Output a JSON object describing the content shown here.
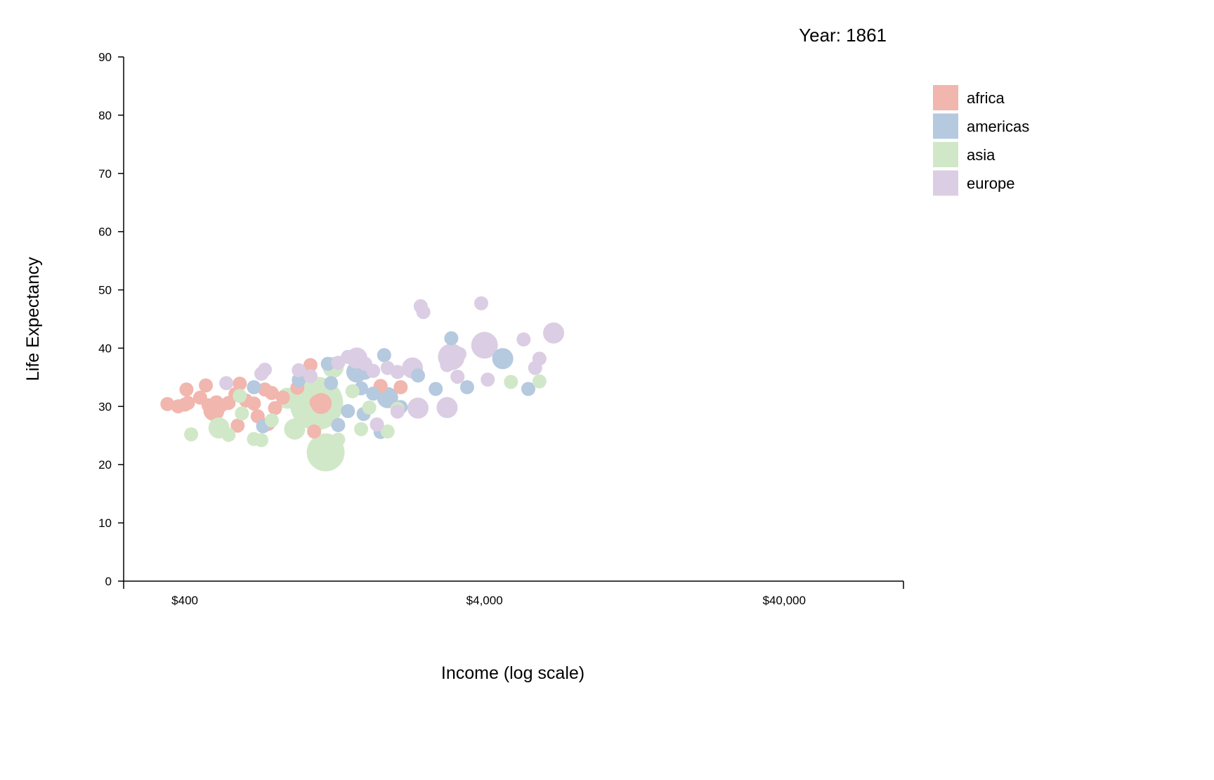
{
  "chart_data": {
    "type": "scatter",
    "title": "",
    "year_label": "Year: 1861",
    "xlabel": "Income (log scale)",
    "ylabel": "Life Expectancy",
    "xscale": "log",
    "xlim": [
      250,
      100000
    ],
    "ylim": [
      0,
      90
    ],
    "x_ticks": [
      400,
      4000,
      40000
    ],
    "x_tick_labels": [
      "$400",
      "$4,000",
      "$40,000"
    ],
    "y_ticks": [
      0,
      10,
      20,
      30,
      40,
      50,
      60,
      70,
      80,
      90
    ],
    "y_tick_labels": [
      "0",
      "10",
      "20",
      "30",
      "40",
      "50",
      "60",
      "70",
      "80",
      "90"
    ],
    "grid": false,
    "legend_position": "top-right",
    "colors": {
      "africa": "#f1b6ae",
      "americas": "#b5c9df",
      "asia": "#d1e8c8",
      "europe": "#dbcde3"
    },
    "series": [
      {
        "name": "africa",
        "points": [
          [
            350,
            30.4,
            1
          ],
          [
            380,
            30.0,
            1
          ],
          [
            400,
            30.3,
            1
          ],
          [
            410,
            30.6,
            1
          ],
          [
            405,
            32.9,
            1
          ],
          [
            450,
            31.5,
            1
          ],
          [
            470,
            33.6,
            1
          ],
          [
            480,
            30.2,
            1
          ],
          [
            500,
            29.3,
            2
          ],
          [
            510,
            30.7,
            1
          ],
          [
            530,
            30.2,
            1
          ],
          [
            560,
            30.6,
            1
          ],
          [
            590,
            32.1,
            1
          ],
          [
            610,
            33.9,
            1
          ],
          [
            600,
            26.7,
            1
          ],
          [
            680,
            30.5,
            1
          ],
          [
            700,
            28.3,
            1
          ],
          [
            740,
            32.9,
            1
          ],
          [
            760,
            27.0,
            1
          ],
          [
            780,
            32.3,
            1
          ],
          [
            800,
            29.7,
            1
          ],
          [
            850,
            31.5,
            1
          ],
          [
            950,
            33.2,
            1
          ],
          [
            1050,
            37.1,
            1
          ],
          [
            1100,
            30.7,
            1
          ],
          [
            1140,
            30.5,
            2
          ],
          [
            1080,
            25.7,
            1
          ],
          [
            1800,
            33.5,
            1
          ],
          [
            2100,
            33.3,
            1
          ],
          [
            640,
            31.0,
            1
          ]
        ]
      },
      {
        "name": "americas",
        "points": [
          [
            680,
            33.3,
            1
          ],
          [
            730,
            26.6,
            1
          ],
          [
            960,
            34.5,
            1
          ],
          [
            1200,
            37.3,
            1
          ],
          [
            1230,
            34.0,
            1
          ],
          [
            1300,
            26.8,
            1
          ],
          [
            1500,
            35.9,
            2
          ],
          [
            1550,
            33.1,
            1
          ],
          [
            1600,
            35.8,
            1
          ],
          [
            1580,
            28.7,
            1
          ],
          [
            1800,
            25.6,
            1
          ],
          [
            1850,
            38.8,
            1
          ],
          [
            1900,
            31.5,
            2
          ],
          [
            2100,
            29.9,
            1
          ],
          [
            2400,
            35.3,
            1
          ],
          [
            2750,
            33.0,
            1
          ],
          [
            3100,
            41.7,
            1
          ],
          [
            3500,
            33.3,
            1
          ],
          [
            4600,
            38.2,
            2
          ],
          [
            5600,
            33.0,
            1
          ],
          [
            1400,
            29.2,
            1
          ],
          [
            1700,
            32.2,
            1
          ]
        ]
      },
      {
        "name": "asia",
        "points": [
          [
            420,
            25.2,
            1
          ],
          [
            520,
            26.3,
            2
          ],
          [
            560,
            25.1,
            1
          ],
          [
            610,
            31.8,
            1
          ],
          [
            620,
            28.8,
            1
          ],
          [
            680,
            24.4,
            1
          ],
          [
            720,
            24.2,
            1
          ],
          [
            780,
            27.6,
            1
          ],
          [
            880,
            31.4,
            2
          ],
          [
            930,
            26.1,
            2
          ],
          [
            1000,
            28.2,
            2
          ],
          [
            1100,
            30.5,
            5
          ],
          [
            1180,
            22.1,
            4
          ],
          [
            1250,
            36.7,
            2
          ],
          [
            1300,
            24.3,
            1
          ],
          [
            1450,
            32.6,
            1
          ],
          [
            1550,
            26.1,
            1
          ],
          [
            1650,
            29.8,
            1
          ],
          [
            1900,
            25.7,
            1
          ],
          [
            2050,
            29.6,
            1
          ],
          [
            4900,
            34.2,
            1
          ],
          [
            6100,
            34.3,
            1
          ]
        ]
      },
      {
        "name": "europe",
        "points": [
          [
            550,
            34.0,
            1
          ],
          [
            720,
            35.6,
            1
          ],
          [
            740,
            36.3,
            1
          ],
          [
            960,
            36.2,
            1
          ],
          [
            1050,
            35.2,
            1
          ],
          [
            1300,
            37.5,
            1
          ],
          [
            1500,
            38.3,
            2
          ],
          [
            1700,
            36.1,
            1
          ],
          [
            1900,
            36.6,
            1
          ],
          [
            2050,
            35.9,
            1
          ],
          [
            2050,
            29.1,
            1
          ],
          [
            2300,
            36.6,
            2
          ],
          [
            2400,
            29.7,
            2
          ],
          [
            2450,
            47.2,
            1
          ],
          [
            2500,
            46.2,
            1
          ],
          [
            3000,
            29.8,
            2
          ],
          [
            3100,
            38.5,
            3
          ],
          [
            3250,
            35.1,
            1
          ],
          [
            3300,
            39.0,
            1
          ],
          [
            3900,
            47.7,
            1
          ],
          [
            4000,
            40.5,
            3
          ],
          [
            4100,
            34.6,
            1
          ],
          [
            5400,
            41.5,
            1
          ],
          [
            5900,
            36.6,
            1
          ],
          [
            6100,
            38.2,
            1
          ],
          [
            6800,
            42.6,
            2
          ],
          [
            1400,
            38.5,
            1
          ],
          [
            1600,
            37.3,
            1
          ],
          [
            1750,
            26.9,
            1
          ],
          [
            3000,
            37.1,
            1
          ]
        ]
      }
    ]
  }
}
